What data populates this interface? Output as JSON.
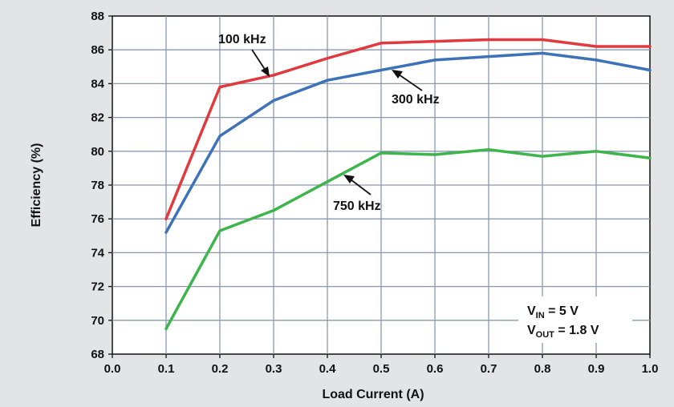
{
  "chart_data": {
    "type": "line",
    "xlabel": "Load Current (A)",
    "ylabel": "Efficiency (%)",
    "xlim": [
      0.0,
      1.0
    ],
    "ylim": [
      68,
      88
    ],
    "x_ticks": [
      "0.0",
      "0.1",
      "0.2",
      "0.3",
      "0.4",
      "0.5",
      "0.6",
      "0.7",
      "0.8",
      "0.9",
      "1.0"
    ],
    "y_ticks": [
      "68",
      "70",
      "72",
      "74",
      "76",
      "78",
      "80",
      "82",
      "84",
      "86",
      "88"
    ],
    "grid": true,
    "x": [
      0.1,
      0.2,
      0.3,
      0.4,
      0.5,
      0.6,
      0.7,
      0.8,
      0.9,
      1.0
    ],
    "series": [
      {
        "name": "100 kHz",
        "color": "#e03a3e",
        "values": [
          76.0,
          83.8,
          84.5,
          85.5,
          86.4,
          86.5,
          86.6,
          86.6,
          86.2,
          86.2
        ]
      },
      {
        "name": "300 kHz",
        "color": "#3d72b8",
        "values": [
          75.2,
          80.9,
          83.0,
          84.2,
          84.8,
          85.4,
          85.6,
          85.8,
          85.4,
          84.8
        ]
      },
      {
        "name": "750 kHz",
        "color": "#3db54a",
        "values": [
          69.5,
          75.3,
          76.5,
          78.2,
          79.9,
          79.8,
          80.1,
          79.7,
          80.0,
          79.6
        ]
      }
    ],
    "conditions": {
      "vin_main": "V",
      "vin_sub": "IN",
      "vin_value": " = 5 V",
      "vout_main": "V",
      "vout_sub": "OUT",
      "vout_value": " = 1.8 V"
    }
  }
}
